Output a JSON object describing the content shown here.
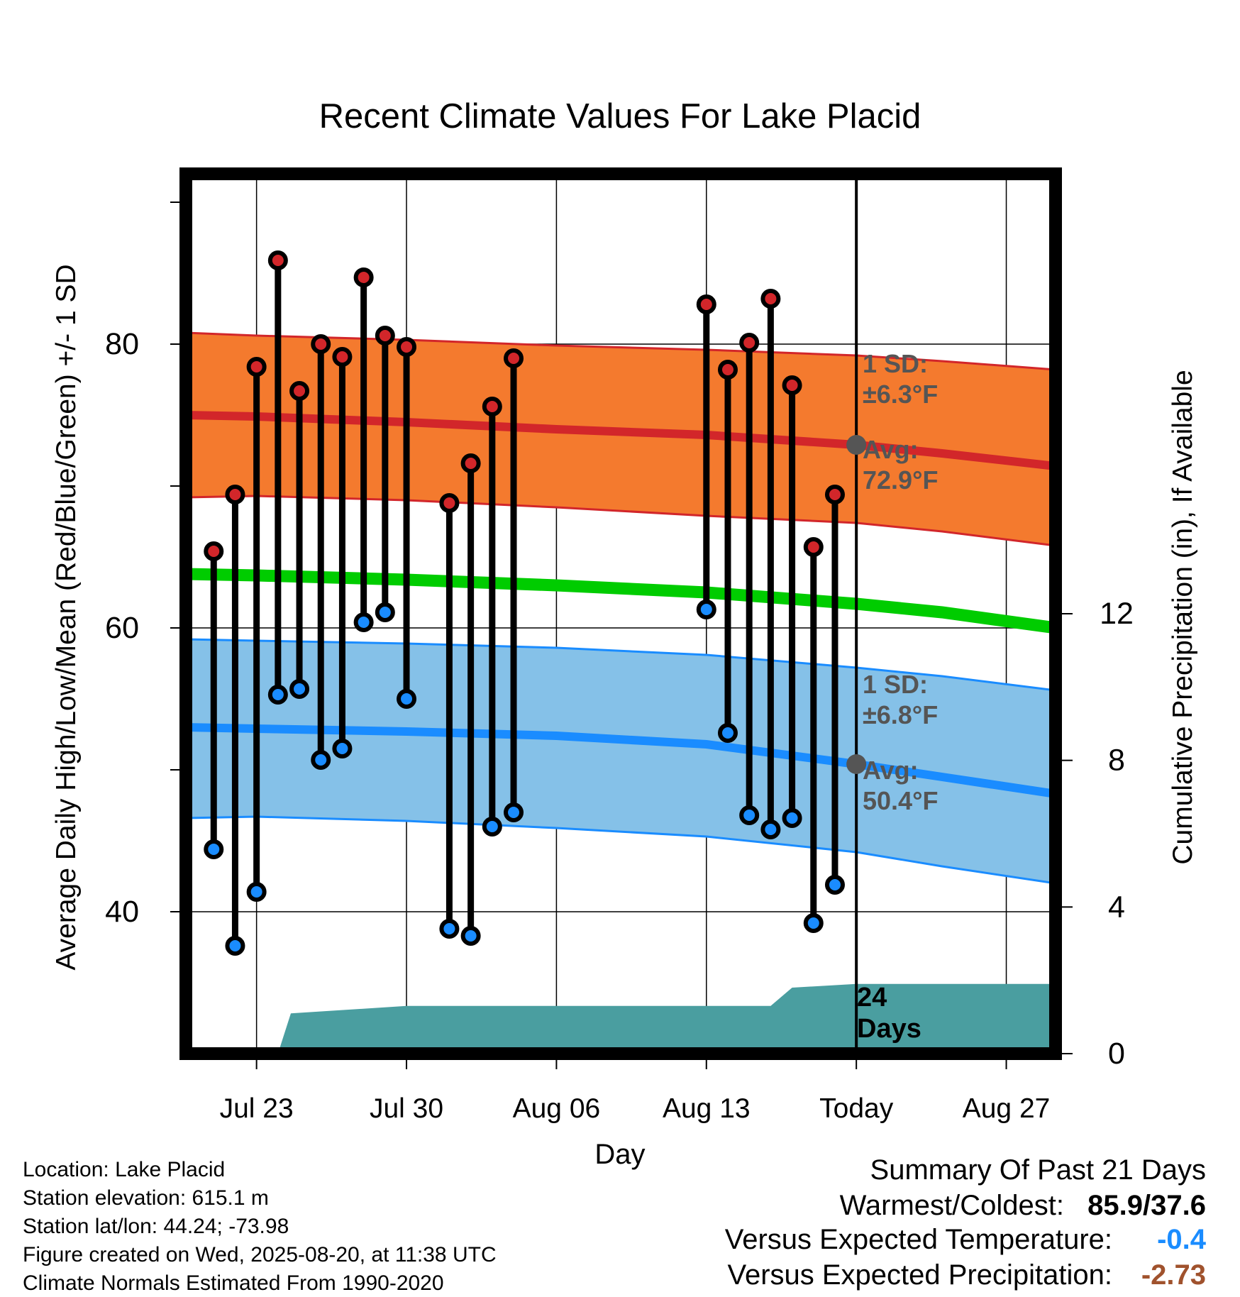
{
  "chart_data": {
    "type": "line",
    "title": "Recent Climate Values For Lake Placid",
    "xlabel": "Day",
    "ylabel": "Average Daily High/Low/Mean (Red/Blue/Green) +/- 1 SD",
    "y2label": "Cumulative Precipitation (in), If Available",
    "ylim": [
      30,
      92
    ],
    "y2lim": [
      0,
      24
    ],
    "xlim": [
      -3.3,
      37.3
    ],
    "yticks": [
      "40",
      "60",
      "80"
    ],
    "y2ticks": [
      "0",
      "4",
      "8",
      "12"
    ],
    "xticks": [
      {
        "label": "Jul 23",
        "day": 0
      },
      {
        "label": "Jul 30",
        "day": 7
      },
      {
        "label": "Aug 06",
        "day": 14
      },
      {
        "label": "Aug 13",
        "day": 21
      },
      {
        "label": "Today",
        "day": 28
      },
      {
        "label": "Aug 27",
        "day": 35
      }
    ],
    "today_day": 28,
    "grid": true,
    "days": [
      -2,
      -1,
      0,
      1,
      2,
      3,
      4,
      5,
      6,
      7,
      9,
      10,
      11,
      12,
      21,
      22,
      23,
      24,
      25,
      26,
      27
    ],
    "highs": [
      65.4,
      69.4,
      78.4,
      85.9,
      76.7,
      80.0,
      79.1,
      84.7,
      80.6,
      79.8,
      68.8,
      71.6,
      75.6,
      79.0,
      82.8,
      78.2,
      80.1,
      83.2,
      77.1,
      65.7,
      69.4
    ],
    "lows": [
      44.4,
      37.6,
      41.4,
      55.3,
      55.7,
      50.7,
      51.5,
      60.4,
      61.1,
      55.0,
      38.8,
      38.3,
      46.0,
      47.0,
      61.3,
      52.6,
      46.8,
      45.8,
      46.6,
      39.2,
      41.9
    ],
    "normals": {
      "days": [
        -3.3,
        0,
        7,
        14,
        21,
        28,
        32,
        37.3
      ],
      "high_avg": [
        75.0,
        74.9,
        74.5,
        74.0,
        73.6,
        72.9,
        72.3,
        71.4
      ],
      "high_upper": [
        80.8,
        80.6,
        80.3,
        79.9,
        79.6,
        79.2,
        78.8,
        78.2
      ],
      "high_lower": [
        69.2,
        69.3,
        69.0,
        68.5,
        67.9,
        67.4,
        66.8,
        65.8
      ],
      "mean": [
        63.8,
        63.7,
        63.4,
        63.0,
        62.5,
        61.7,
        61.1,
        60.0
      ],
      "low_avg": [
        53.0,
        52.9,
        52.7,
        52.4,
        51.8,
        50.4,
        49.5,
        48.3
      ],
      "low_upper": [
        59.2,
        59.1,
        58.9,
        58.6,
        58.1,
        57.2,
        56.6,
        55.6
      ],
      "low_lower": [
        46.6,
        46.7,
        46.4,
        45.9,
        45.3,
        44.2,
        43.2,
        42.0
      ]
    },
    "precip": {
      "days": [
        -3.3,
        1,
        1.6,
        7,
        24,
        25,
        28,
        37.3
      ],
      "cumulative": [
        0,
        0,
        1.1,
        1.3,
        1.3,
        1.8,
        1.9,
        1.9
      ]
    },
    "annotations": {
      "high_sd_label": "1 SD:",
      "high_sd_value": "±6.3°F",
      "high_avg_label": "Avg:",
      "high_avg_value": "72.9°F",
      "low_sd_label": "1 SD:",
      "low_sd_value": "±6.8°F",
      "low_avg_label": "Avg:",
      "low_avg_value": "50.4°F",
      "days_num": "24",
      "days_word": "Days"
    },
    "colors": {
      "high_band": "#f47a2e",
      "high_line": "#d2262a",
      "mean_line": "#00cc00",
      "low_band": "#85c1e8",
      "low_line": "#1a8cff",
      "precip": "#4a9ea0",
      "warm_text": "#8b8b8b",
      "temp_anom": "#1a8cff",
      "precip_anom": "#a0522d"
    }
  },
  "info": {
    "location": "Location: Lake Placid",
    "elevation": "Station elevation: 615.1 m",
    "latlon": "Station lat/lon: 44.24; -73.98",
    "created": "Figure created on Wed, 2025-08-20, at 11:38 UTC",
    "normals": "Climate Normals Estimated From 1990-2020"
  },
  "summary": {
    "title": "Summary Of Past 21 Days",
    "warm_cold_label": "Warmest/Coldest:",
    "warm_cold_value": "85.9/37.6",
    "temp_label": "Versus Expected Temperature:",
    "temp_value": "-0.4",
    "precip_label": "Versus Expected Precipitation:",
    "precip_value": "-2.73"
  }
}
